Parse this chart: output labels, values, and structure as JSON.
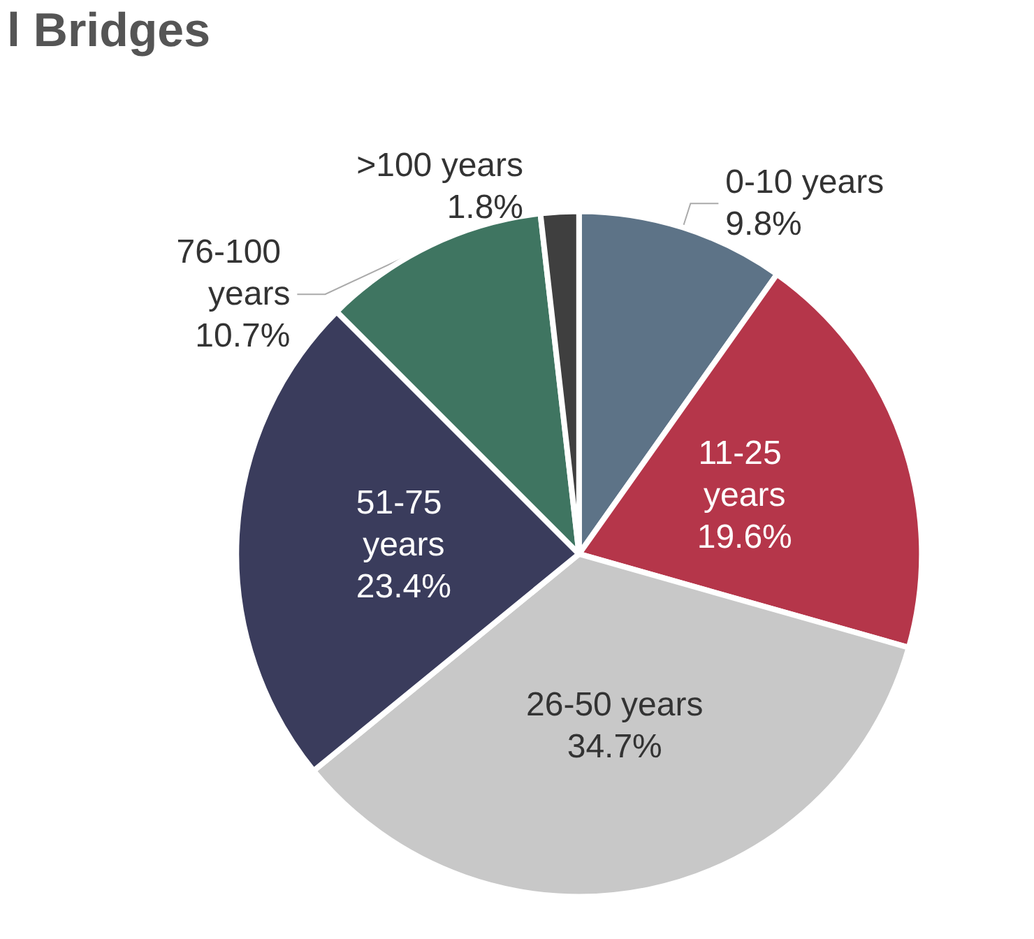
{
  "chart_data": {
    "type": "pie",
    "title": "l Bridges",
    "categories": [
      "0-10 years",
      "11-25 years",
      "26-50 years",
      "51-75 years",
      "76-100 years",
      ">100 years"
    ],
    "values": [
      9.8,
      19.6,
      34.7,
      23.4,
      10.7,
      1.8
    ],
    "value_labels": [
      "9.8%",
      "19.6%",
      "34.7%",
      "23.4%",
      "10.7%",
      "1.8%"
    ],
    "colors": [
      "#5d7387",
      "#b5364a",
      "#c8c8c8",
      "#3a3c5c",
      "#3f7561",
      "#3f3f3f"
    ]
  }
}
